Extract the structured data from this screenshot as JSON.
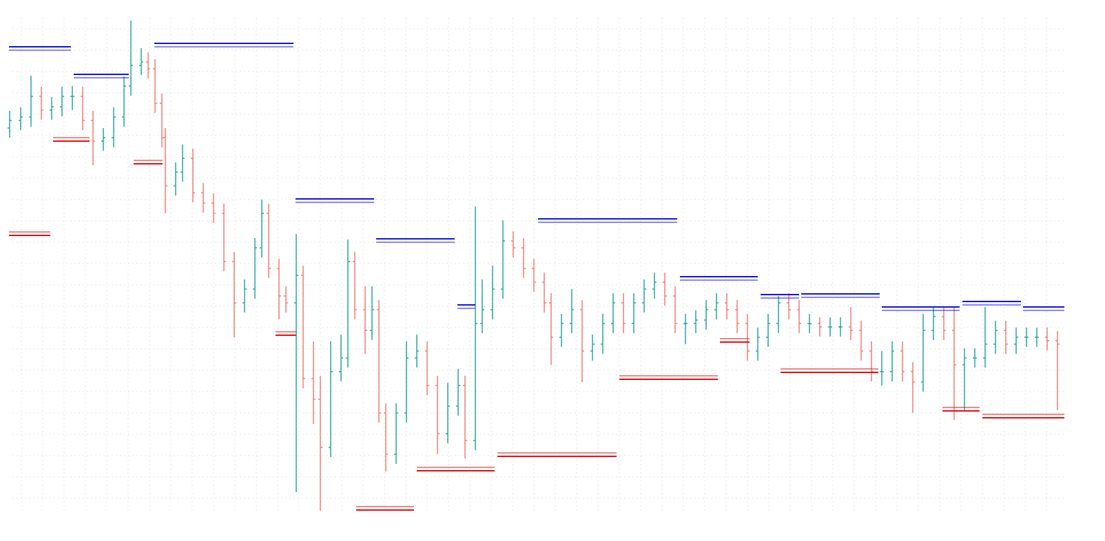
{
  "chart_data": {
    "type": "ohlc",
    "xlim": [
      0,
      1604
    ],
    "ylim": [
      0,
      786
    ],
    "grid": true,
    "xticks": [
      31,
      62,
      93,
      124,
      155,
      186,
      217,
      248,
      279,
      310,
      341,
      372,
      403,
      434,
      465,
      496,
      527,
      558,
      589,
      620,
      651,
      682,
      713,
      744,
      775,
      806,
      837,
      868,
      899,
      930,
      961,
      992,
      1023,
      1054,
      1085,
      1116,
      1147,
      1178,
      1209,
      1240,
      1271,
      1302,
      1333,
      1364,
      1395,
      1426,
      1457,
      1488,
      1519
    ],
    "yticks": [
      744,
      713,
      682,
      651,
      620,
      589,
      558,
      527,
      496,
      465,
      434,
      403,
      372,
      341,
      310,
      279,
      248,
      217,
      186,
      155,
      124,
      93,
      62
    ],
    "up_color": "#26a69a",
    "down_color": "#f07b72",
    "x": [
      14,
      30,
      45,
      60,
      75,
      90,
      105,
      120,
      135,
      150,
      165,
      180,
      190,
      205,
      215,
      225,
      235,
      240,
      255,
      265,
      280,
      295,
      310,
      325,
      340,
      355,
      370,
      380,
      390,
      405,
      415,
      430,
      440,
      455,
      465,
      480,
      495,
      505,
      515,
      530,
      540,
      550,
      560,
      575,
      590,
      605,
      620,
      635,
      650,
      665,
      675,
      690,
      700,
      715,
      730,
      745,
      760,
      775,
      790,
      800,
      815,
      830,
      845,
      860,
      875,
      890,
      905,
      920,
      935,
      950,
      965,
      980,
      995,
      1010,
      1025,
      1040,
      1055,
      1070,
      1085,
      1100,
      1115,
      1130,
      1145,
      1160,
      1175,
      1190,
      1205,
      1220,
      1235,
      1250,
      1265,
      1280,
      1295,
      1310,
      1325,
      1340,
      1355,
      1370,
      1385,
      1400,
      1415,
      1430,
      1445,
      1460,
      1475,
      1490,
      1505,
      1520,
      1535
    ],
    "open": [
      600,
      611,
      616,
      646,
      626,
      631,
      646,
      646,
      611,
      581,
      586,
      616,
      661,
      691,
      696,
      686,
      636,
      586,
      516,
      536,
      556,
      506,
      491,
      476,
      406,
      346,
      366,
      426,
      476,
      396,
      356,
      346,
      386,
      236,
      206,
      136,
      246,
      266,
      406,
      336,
      306,
      336,
      186,
      126,
      186,
      266,
      276,
      226,
      156,
      196,
      226,
      146,
      316,
      336,
      366,
      436,
      426,
      396,
      376,
      346,
      296,
      316,
      336,
      276,
      286,
      316,
      346,
      316,
      346,
      366,
      376,
      356,
      316,
      316,
      321,
      336,
      346,
      336,
      316,
      276,
      296,
      316,
      346,
      336,
      316,
      316,
      311,
      311,
      311,
      306,
      276,
      246,
      246,
      276,
      246,
      231,
      306,
      326,
      306,
      256,
      266,
      266,
      286,
      306,
      286,
      296,
      296,
      296,
      291
    ],
    "high": [
      625,
      630,
      676,
      660,
      645,
      660,
      661,
      660,
      625,
      600,
      630,
      675,
      756,
      716,
      710,
      700,
      650,
      600,
      550,
      576,
      570,
      520,
      505,
      490,
      420,
      380,
      440,
      496,
      490,
      410,
      370,
      446,
      400,
      290,
      240,
      290,
      300,
      438,
      420,
      370,
      370,
      350,
      200,
      200,
      290,
      300,
      290,
      240,
      230,
      250,
      240,
      486,
      380,
      400,
      466,
      450,
      440,
      410,
      390,
      360,
      330,
      366,
      350,
      300,
      330,
      360,
      360,
      360,
      380,
      390,
      390,
      370,
      330,
      335,
      350,
      360,
      360,
      350,
      330,
      310,
      330,
      356,
      360,
      350,
      330,
      325,
      325,
      325,
      340,
      320,
      290,
      276,
      290,
      290,
      260,
      330,
      340,
      340,
      340,
      280,
      280,
      340,
      320,
      320,
      310,
      310,
      310,
      310,
      305
    ],
    "low": [
      586,
      597,
      602,
      612,
      612,
      617,
      626,
      597,
      546,
      567,
      572,
      602,
      647,
      677,
      672,
      622,
      572,
      476,
      502,
      522,
      492,
      477,
      462,
      392,
      296,
      332,
      352,
      412,
      382,
      322,
      332,
      71,
      222,
      170,
      44,
      122,
      232,
      252,
      322,
      272,
      292,
      172,
      101,
      112,
      172,
      252,
      212,
      126,
      142,
      182,
      120,
      132,
      302,
      322,
      352,
      412,
      382,
      362,
      332,
      256,
      282,
      302,
      231,
      262,
      272,
      302,
      302,
      302,
      332,
      352,
      342,
      302,
      286,
      302,
      307,
      322,
      322,
      302,
      262,
      262,
      282,
      302,
      322,
      302,
      302,
      297,
      297,
      297,
      292,
      262,
      232,
      226,
      232,
      232,
      186,
      217,
      292,
      292,
      176,
      190,
      252,
      252,
      272,
      272,
      272,
      282,
      282,
      277,
      190
    ],
    "close": [
      611,
      616,
      646,
      626,
      631,
      646,
      646,
      611,
      581,
      586,
      616,
      661,
      691,
      696,
      686,
      636,
      586,
      516,
      536,
      556,
      506,
      491,
      476,
      406,
      346,
      366,
      426,
      476,
      396,
      356,
      346,
      386,
      236,
      206,
      136,
      246,
      266,
      406,
      336,
      306,
      336,
      186,
      126,
      186,
      266,
      276,
      226,
      156,
      196,
      226,
      146,
      316,
      336,
      366,
      436,
      426,
      396,
      376,
      346,
      296,
      316,
      336,
      276,
      286,
      316,
      346,
      316,
      346,
      366,
      376,
      356,
      316,
      316,
      321,
      336,
      346,
      336,
      316,
      276,
      296,
      316,
      346,
      336,
      316,
      316,
      311,
      311,
      311,
      306,
      276,
      246,
      246,
      276,
      246,
      231,
      306,
      326,
      306,
      256,
      266,
      266,
      286,
      306,
      286,
      296,
      296,
      296,
      291,
      286
    ],
    "resistance_color": "#1010ee",
    "resistance": [
      {
        "x": [
          13,
          103
        ],
        "value": 718
      },
      {
        "x": [
          107,
          187
        ],
        "value": 678
      },
      {
        "x": [
          224,
          426
        ],
        "value": 723
      },
      {
        "x": [
          429,
          543
        ],
        "value": 497
      },
      {
        "x": [
          546,
          660
        ],
        "value": 439
      },
      {
        "x": [
          664,
          690
        ],
        "value": 343
      },
      {
        "x": [
          781,
          983
        ],
        "value": 468
      },
      {
        "x": [
          987,
          1100
        ],
        "value": 384
      },
      {
        "x": [
          1104,
          1160
        ],
        "value": 358
      },
      {
        "x": [
          1163,
          1277
        ],
        "value": 359
      },
      {
        "x": [
          1280,
          1393
        ],
        "value": 340
      },
      {
        "x": [
          1397,
          1482
        ],
        "value": 348
      },
      {
        "x": [
          1485,
          1545
        ],
        "value": 340
      }
    ],
    "support_color": "#e01010",
    "support": [
      {
        "x": [
          13,
          73
        ],
        "value": 444
      },
      {
        "x": [
          77,
          130
        ],
        "value": 581
      },
      {
        "x": [
          194,
          236
        ],
        "value": 548
      },
      {
        "x": [
          400,
          430
        ],
        "value": 299
      },
      {
        "x": [
          517,
          601
        ],
        "value": 45
      },
      {
        "x": [
          605,
          718
        ],
        "value": 102
      },
      {
        "x": [
          722,
          895
        ],
        "value": 123
      },
      {
        "x": [
          899,
          1042
        ],
        "value": 235
      },
      {
        "x": [
          1045,
          1088
        ],
        "value": 289
      },
      {
        "x": [
          1133,
          1275
        ],
        "value": 245
      },
      {
        "x": [
          1368,
          1422
        ],
        "value": 189
      },
      {
        "x": [
          1426,
          1545
        ],
        "value": 179
      }
    ]
  }
}
